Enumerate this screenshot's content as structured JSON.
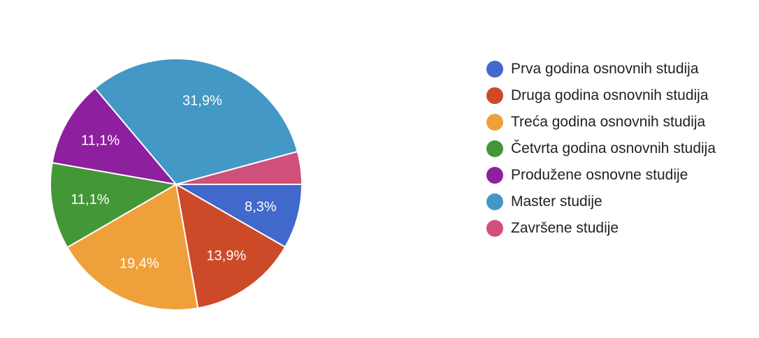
{
  "chart_data": {
    "type": "pie",
    "start_angle_deg": 0,
    "direction": "clockwise",
    "legend_position": "right",
    "slices": [
      {
        "name": "Prva godina osnovnih studija",
        "value": 8.3,
        "label": "8,3%",
        "color": "#4169CC"
      },
      {
        "name": "Druga godina osnovnih studija",
        "value": 13.9,
        "label": "13,9%",
        "color": "#CD4A29"
      },
      {
        "name": "Treća godina osnovnih studija",
        "value": 19.4,
        "label": "19,4%",
        "color": "#F0A03A"
      },
      {
        "name": "Četvrta godina osnovnih studija",
        "value": 11.1,
        "label": "11,1%",
        "color": "#449737"
      },
      {
        "name": "Produžene osnovne studije",
        "value": 11.1,
        "label": "11,1%",
        "color": "#8E1F9E"
      },
      {
        "name": "Master studije",
        "value": 31.9,
        "label": "31,9%",
        "color": "#4398C6"
      },
      {
        "name": "Završene studije",
        "value": 4.2,
        "label": "",
        "color": "#D04F7B"
      }
    ]
  }
}
